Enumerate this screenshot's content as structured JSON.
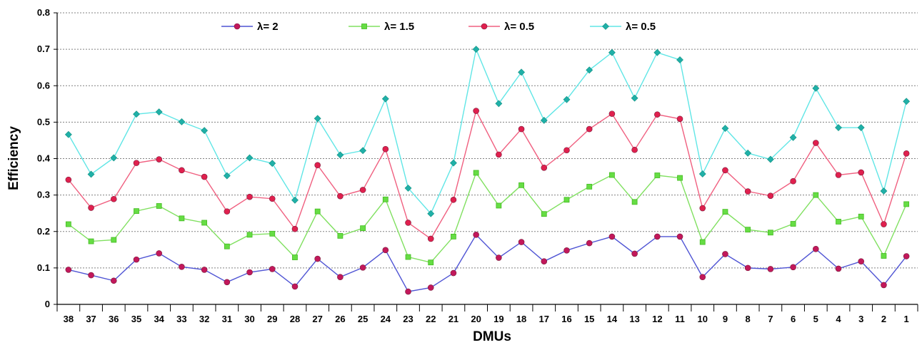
{
  "chart_data": {
    "type": "line",
    "xlabel": "DMUs",
    "ylabel": "Efficiency",
    "categories": [
      "38",
      "37",
      "36",
      "35",
      "34",
      "33",
      "32",
      "31",
      "30",
      "29",
      "28",
      "27",
      "26",
      "25",
      "24",
      "23",
      "22",
      "21",
      "20",
      "19",
      "18",
      "17",
      "16",
      "15",
      "14",
      "13",
      "12",
      "11",
      "10",
      "9",
      "8",
      "7",
      "6",
      "5",
      "4",
      "3",
      "2",
      "1"
    ],
    "ylim": [
      0,
      0.8
    ],
    "yticks": [
      "0",
      "0.1",
      "0.2",
      "0.3",
      "0.4",
      "0.5",
      "0.6",
      "0.7",
      "0.8"
    ],
    "grid": true,
    "legend_position": "top",
    "series": [
      {
        "name": "λ= 2",
        "color": "#4F54D4",
        "marker": "circle",
        "marker_color": "#C2185B",
        "values": [
          0.095,
          0.08,
          0.065,
          0.123,
          0.14,
          0.103,
          0.095,
          0.061,
          0.088,
          0.097,
          0.049,
          0.125,
          0.075,
          0.101,
          0.149,
          0.035,
          0.046,
          0.086,
          0.191,
          0.128,
          0.171,
          0.118,
          0.148,
          0.168,
          0.186,
          0.139,
          0.186,
          0.186,
          0.075,
          0.138,
          0.1,
          0.097,
          0.102,
          0.152,
          0.098,
          0.118,
          0.053,
          0.132
        ]
      },
      {
        "name": "λ= 1.5",
        "color": "#80E060",
        "marker": "square",
        "marker_color": "#66DD44",
        "values": [
          0.22,
          0.173,
          0.177,
          0.256,
          0.27,
          0.236,
          0.224,
          0.159,
          0.191,
          0.194,
          0.129,
          0.255,
          0.188,
          0.209,
          0.288,
          0.13,
          0.115,
          0.186,
          0.361,
          0.271,
          0.327,
          0.248,
          0.287,
          0.323,
          0.355,
          0.281,
          0.354,
          0.347,
          0.171,
          0.254,
          0.205,
          0.197,
          0.221,
          0.3,
          0.227,
          0.241,
          0.133,
          0.275
        ]
      },
      {
        "name": "λ= 0.5",
        "color": "#F06080",
        "marker": "circle",
        "marker_color": "#E0204E",
        "values": [
          0.342,
          0.265,
          0.289,
          0.388,
          0.398,
          0.368,
          0.35,
          0.255,
          0.295,
          0.29,
          0.207,
          0.382,
          0.297,
          0.314,
          0.426,
          0.224,
          0.18,
          0.287,
          0.531,
          0.411,
          0.481,
          0.375,
          0.423,
          0.481,
          0.523,
          0.424,
          0.521,
          0.509,
          0.264,
          0.368,
          0.31,
          0.298,
          0.338,
          0.443,
          0.355,
          0.362,
          0.22,
          0.414
        ]
      },
      {
        "name": "λ= 0.5",
        "color": "#60E6E6",
        "marker": "diamond",
        "marker_color": "#20B0A8",
        "values": [
          0.466,
          0.357,
          0.402,
          0.522,
          0.528,
          0.501,
          0.477,
          0.353,
          0.402,
          0.387,
          0.286,
          0.51,
          0.41,
          0.422,
          0.564,
          0.319,
          0.249,
          0.388,
          0.7,
          0.551,
          0.637,
          0.505,
          0.562,
          0.643,
          0.691,
          0.566,
          0.691,
          0.671,
          0.358,
          0.483,
          0.415,
          0.398,
          0.458,
          0.593,
          0.485,
          0.485,
          0.311,
          0.557
        ]
      }
    ]
  }
}
